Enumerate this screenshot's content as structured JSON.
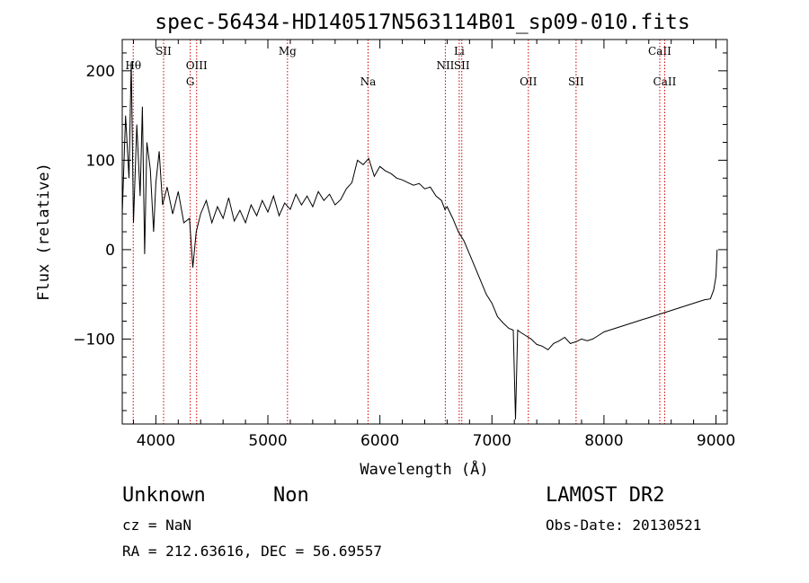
{
  "chart_data": {
    "type": "line",
    "title": "spec-56434-HD140517N563114B01_sp09-010.fits",
    "xlabel": "Wavelength (Å)",
    "ylabel": "Flux (relative)",
    "xlim": [
      3700,
      9100
    ],
    "ylim": [
      -195,
      235
    ],
    "xticks": [
      4000,
      5000,
      6000,
      7000,
      8000,
      9000
    ],
    "yticks": [
      -100,
      0,
      100,
      200
    ],
    "series": [
      {
        "x": [
          3700,
          3730,
          3760,
          3780,
          3800,
          3830,
          3860,
          3880,
          3900,
          3920,
          3950,
          3980,
          4000,
          4030,
          4060,
          4100,
          4150,
          4200,
          4250,
          4300,
          4330,
          4360,
          4400,
          4450,
          4500,
          4550,
          4600,
          4650,
          4700,
          4750,
          4800,
          4850,
          4900,
          4950,
          5000,
          5050,
          5100,
          5150,
          5200,
          5250,
          5300,
          5350,
          5400,
          5450,
          5500,
          5550,
          5600,
          5650,
          5700,
          5750,
          5800,
          5850,
          5900,
          5950,
          6000,
          6050,
          6100,
          6150,
          6200,
          6250,
          6300,
          6350,
          6400,
          6450,
          6500,
          6550,
          6580,
          6600,
          6650,
          6700,
          6750,
          6800,
          6850,
          6900,
          6950,
          7000,
          7050,
          7100,
          7150,
          7190,
          7210,
          7230,
          7250,
          7300,
          7350,
          7400,
          7450,
          7500,
          7550,
          7600,
          7650,
          7700,
          7750,
          7800,
          7850,
          7900,
          7950,
          8000,
          8050,
          8100,
          8150,
          8200,
          8250,
          8300,
          8350,
          8400,
          8450,
          8500,
          8550,
          8600,
          8650,
          8700,
          8750,
          8800,
          8850,
          8900,
          8950,
          8980,
          9000,
          9010
        ],
        "y": [
          40,
          150,
          80,
          210,
          30,
          140,
          60,
          160,
          -5,
          120,
          90,
          20,
          75,
          110,
          50,
          70,
          40,
          65,
          30,
          35,
          -20,
          20,
          40,
          55,
          30,
          48,
          35,
          58,
          32,
          44,
          30,
          50,
          38,
          55,
          42,
          60,
          38,
          52,
          45,
          62,
          50,
          60,
          48,
          65,
          55,
          62,
          50,
          56,
          68,
          75,
          100,
          95,
          102,
          82,
          93,
          88,
          85,
          80,
          78,
          75,
          72,
          74,
          68,
          70,
          60,
          55,
          45,
          48,
          35,
          20,
          10,
          -5,
          -20,
          -35,
          -50,
          -60,
          -75,
          -82,
          -88,
          -90,
          -190,
          -90,
          -92,
          -96,
          -100,
          -106,
          -108,
          -112,
          -105,
          -102,
          -98,
          -105,
          -103,
          -100,
          -102,
          -100,
          -96,
          -92,
          -90,
          -88,
          -86,
          -84,
          -82,
          -80,
          -78,
          -76,
          -74,
          -72,
          -70,
          -68,
          -66,
          -64,
          -62,
          -60,
          -58,
          -56,
          -55,
          -45,
          -30,
          0
        ]
      }
    ],
    "lines": [
      {
        "label": "Hθ",
        "x": 3798,
        "row": 2
      },
      {
        "label": "SII",
        "x": 4069,
        "row": 1
      },
      {
        "label": "G",
        "x": 4307,
        "row": 3
      },
      {
        "label": "OIII",
        "x": 4364,
        "row": 2
      },
      {
        "label": "Mg",
        "x": 5175,
        "row": 1
      },
      {
        "label": "Na",
        "x": 5894,
        "row": 3
      },
      {
        "label": "NII",
        "x": 6584,
        "row": 2
      },
      {
        "label": "Li",
        "x": 6708,
        "row": 1
      },
      {
        "label": "SII",
        "x": 6731,
        "row": 2
      },
      {
        "label": "OII",
        "x": 7325,
        "row": 3
      },
      {
        "label": "SII",
        "x": 7751,
        "row": 3
      },
      {
        "label": "CaII",
        "x": 8498,
        "row": 1
      },
      {
        "label": "CaII",
        "x": 8542,
        "row": 3
      }
    ],
    "line_color": "#cc0000"
  },
  "info": {
    "class": "Unknown",
    "subclass": "Non",
    "cz": "cz = NaN",
    "coords": "RA = 212.63616, DEC =  56.69557",
    "survey": "LAMOST DR2",
    "obs_date": "Obs-Date: 20130521"
  }
}
